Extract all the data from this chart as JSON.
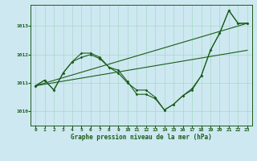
{
  "title": "Graphe pression niveau de la mer (hPa)",
  "background_color": "#cde8f0",
  "grid_color": "#a8d8c8",
  "line_color": "#1a5c1a",
  "xlim": [
    -0.5,
    23.5
  ],
  "ylim": [
    1009.5,
    1013.75
  ],
  "yticks": [
    1010,
    1011,
    1012,
    1013
  ],
  "xticks": [
    0,
    1,
    2,
    3,
    4,
    5,
    6,
    7,
    8,
    9,
    10,
    11,
    12,
    13,
    14,
    15,
    16,
    17,
    18,
    19,
    20,
    21,
    22,
    23
  ],
  "series1_x": [
    0,
    1,
    2,
    3,
    4,
    5,
    6,
    7,
    8,
    9,
    10,
    11,
    12,
    13,
    14,
    15,
    16,
    17,
    18,
    19,
    20,
    21,
    22,
    23
  ],
  "series1_y": [
    1010.9,
    1011.1,
    1010.75,
    1011.35,
    1011.75,
    1011.9,
    1012.0,
    1011.85,
    1011.55,
    1011.35,
    1011.0,
    1010.75,
    1010.75,
    1010.5,
    1010.05,
    1010.25,
    1010.55,
    1010.75,
    1011.25,
    1012.15,
    1012.75,
    1013.55,
    1013.1,
    1013.1
  ],
  "series2_x": [
    0,
    1,
    2,
    3,
    4,
    5,
    6,
    7,
    8,
    9,
    10,
    11,
    12,
    13,
    14,
    15,
    16,
    17,
    18,
    19,
    20,
    21,
    22,
    23
  ],
  "series2_y": [
    1010.9,
    1011.1,
    1010.75,
    1011.35,
    1011.75,
    1012.05,
    1012.05,
    1011.9,
    1011.55,
    1011.45,
    1011.05,
    1010.6,
    1010.6,
    1010.45,
    1010.05,
    1010.25,
    1010.55,
    1010.8,
    1011.25,
    1012.15,
    1012.75,
    1013.55,
    1013.1,
    1013.1
  ],
  "line1_x": [
    0,
    23
  ],
  "line1_y": [
    1010.9,
    1013.1
  ],
  "line2_x": [
    0,
    23
  ],
  "line2_y": [
    1010.9,
    1012.15
  ],
  "xlabel_fontsize": 5.5,
  "tick_fontsize": 4.5
}
